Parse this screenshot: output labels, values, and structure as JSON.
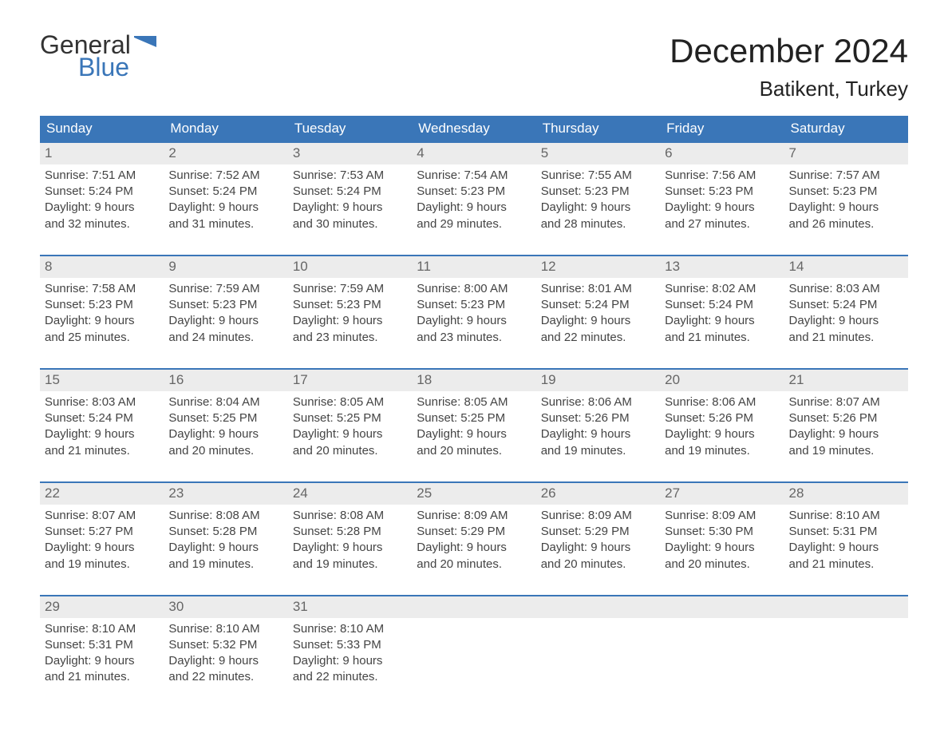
{
  "brand": {
    "word1": "General",
    "word2": "Blue",
    "accent_color": "#3a76b8"
  },
  "title": "December 2024",
  "location": "Batikent, Turkey",
  "calendar": {
    "type": "table",
    "columns": [
      "Sunday",
      "Monday",
      "Tuesday",
      "Wednesday",
      "Thursday",
      "Friday",
      "Saturday"
    ],
    "header_bg": "#3a76b8",
    "header_text_color": "#ffffff",
    "daynum_bg": "#ececec",
    "daynum_text_color": "#666666",
    "body_text_color": "#444444",
    "row_divider_color": "#3a76b8",
    "font_size_body": 15,
    "font_size_header": 17,
    "weeks": [
      [
        {
          "num": "1",
          "sunrise": "Sunrise: 7:51 AM",
          "sunset": "Sunset: 5:24 PM",
          "daylight1": "Daylight: 9 hours",
          "daylight2": "and 32 minutes."
        },
        {
          "num": "2",
          "sunrise": "Sunrise: 7:52 AM",
          "sunset": "Sunset: 5:24 PM",
          "daylight1": "Daylight: 9 hours",
          "daylight2": "and 31 minutes."
        },
        {
          "num": "3",
          "sunrise": "Sunrise: 7:53 AM",
          "sunset": "Sunset: 5:24 PM",
          "daylight1": "Daylight: 9 hours",
          "daylight2": "and 30 minutes."
        },
        {
          "num": "4",
          "sunrise": "Sunrise: 7:54 AM",
          "sunset": "Sunset: 5:23 PM",
          "daylight1": "Daylight: 9 hours",
          "daylight2": "and 29 minutes."
        },
        {
          "num": "5",
          "sunrise": "Sunrise: 7:55 AM",
          "sunset": "Sunset: 5:23 PM",
          "daylight1": "Daylight: 9 hours",
          "daylight2": "and 28 minutes."
        },
        {
          "num": "6",
          "sunrise": "Sunrise: 7:56 AM",
          "sunset": "Sunset: 5:23 PM",
          "daylight1": "Daylight: 9 hours",
          "daylight2": "and 27 minutes."
        },
        {
          "num": "7",
          "sunrise": "Sunrise: 7:57 AM",
          "sunset": "Sunset: 5:23 PM",
          "daylight1": "Daylight: 9 hours",
          "daylight2": "and 26 minutes."
        }
      ],
      [
        {
          "num": "8",
          "sunrise": "Sunrise: 7:58 AM",
          "sunset": "Sunset: 5:23 PM",
          "daylight1": "Daylight: 9 hours",
          "daylight2": "and 25 minutes."
        },
        {
          "num": "9",
          "sunrise": "Sunrise: 7:59 AM",
          "sunset": "Sunset: 5:23 PM",
          "daylight1": "Daylight: 9 hours",
          "daylight2": "and 24 minutes."
        },
        {
          "num": "10",
          "sunrise": "Sunrise: 7:59 AM",
          "sunset": "Sunset: 5:23 PM",
          "daylight1": "Daylight: 9 hours",
          "daylight2": "and 23 minutes."
        },
        {
          "num": "11",
          "sunrise": "Sunrise: 8:00 AM",
          "sunset": "Sunset: 5:23 PM",
          "daylight1": "Daylight: 9 hours",
          "daylight2": "and 23 minutes."
        },
        {
          "num": "12",
          "sunrise": "Sunrise: 8:01 AM",
          "sunset": "Sunset: 5:24 PM",
          "daylight1": "Daylight: 9 hours",
          "daylight2": "and 22 minutes."
        },
        {
          "num": "13",
          "sunrise": "Sunrise: 8:02 AM",
          "sunset": "Sunset: 5:24 PM",
          "daylight1": "Daylight: 9 hours",
          "daylight2": "and 21 minutes."
        },
        {
          "num": "14",
          "sunrise": "Sunrise: 8:03 AM",
          "sunset": "Sunset: 5:24 PM",
          "daylight1": "Daylight: 9 hours",
          "daylight2": "and 21 minutes."
        }
      ],
      [
        {
          "num": "15",
          "sunrise": "Sunrise: 8:03 AM",
          "sunset": "Sunset: 5:24 PM",
          "daylight1": "Daylight: 9 hours",
          "daylight2": "and 21 minutes."
        },
        {
          "num": "16",
          "sunrise": "Sunrise: 8:04 AM",
          "sunset": "Sunset: 5:25 PM",
          "daylight1": "Daylight: 9 hours",
          "daylight2": "and 20 minutes."
        },
        {
          "num": "17",
          "sunrise": "Sunrise: 8:05 AM",
          "sunset": "Sunset: 5:25 PM",
          "daylight1": "Daylight: 9 hours",
          "daylight2": "and 20 minutes."
        },
        {
          "num": "18",
          "sunrise": "Sunrise: 8:05 AM",
          "sunset": "Sunset: 5:25 PM",
          "daylight1": "Daylight: 9 hours",
          "daylight2": "and 20 minutes."
        },
        {
          "num": "19",
          "sunrise": "Sunrise: 8:06 AM",
          "sunset": "Sunset: 5:26 PM",
          "daylight1": "Daylight: 9 hours",
          "daylight2": "and 19 minutes."
        },
        {
          "num": "20",
          "sunrise": "Sunrise: 8:06 AM",
          "sunset": "Sunset: 5:26 PM",
          "daylight1": "Daylight: 9 hours",
          "daylight2": "and 19 minutes."
        },
        {
          "num": "21",
          "sunrise": "Sunrise: 8:07 AM",
          "sunset": "Sunset: 5:26 PM",
          "daylight1": "Daylight: 9 hours",
          "daylight2": "and 19 minutes."
        }
      ],
      [
        {
          "num": "22",
          "sunrise": "Sunrise: 8:07 AM",
          "sunset": "Sunset: 5:27 PM",
          "daylight1": "Daylight: 9 hours",
          "daylight2": "and 19 minutes."
        },
        {
          "num": "23",
          "sunrise": "Sunrise: 8:08 AM",
          "sunset": "Sunset: 5:28 PM",
          "daylight1": "Daylight: 9 hours",
          "daylight2": "and 19 minutes."
        },
        {
          "num": "24",
          "sunrise": "Sunrise: 8:08 AM",
          "sunset": "Sunset: 5:28 PM",
          "daylight1": "Daylight: 9 hours",
          "daylight2": "and 19 minutes."
        },
        {
          "num": "25",
          "sunrise": "Sunrise: 8:09 AM",
          "sunset": "Sunset: 5:29 PM",
          "daylight1": "Daylight: 9 hours",
          "daylight2": "and 20 minutes."
        },
        {
          "num": "26",
          "sunrise": "Sunrise: 8:09 AM",
          "sunset": "Sunset: 5:29 PM",
          "daylight1": "Daylight: 9 hours",
          "daylight2": "and 20 minutes."
        },
        {
          "num": "27",
          "sunrise": "Sunrise: 8:09 AM",
          "sunset": "Sunset: 5:30 PM",
          "daylight1": "Daylight: 9 hours",
          "daylight2": "and 20 minutes."
        },
        {
          "num": "28",
          "sunrise": "Sunrise: 8:10 AM",
          "sunset": "Sunset: 5:31 PM",
          "daylight1": "Daylight: 9 hours",
          "daylight2": "and 21 minutes."
        }
      ],
      [
        {
          "num": "29",
          "sunrise": "Sunrise: 8:10 AM",
          "sunset": "Sunset: 5:31 PM",
          "daylight1": "Daylight: 9 hours",
          "daylight2": "and 21 minutes."
        },
        {
          "num": "30",
          "sunrise": "Sunrise: 8:10 AM",
          "sunset": "Sunset: 5:32 PM",
          "daylight1": "Daylight: 9 hours",
          "daylight2": "and 22 minutes."
        },
        {
          "num": "31",
          "sunrise": "Sunrise: 8:10 AM",
          "sunset": "Sunset: 5:33 PM",
          "daylight1": "Daylight: 9 hours",
          "daylight2": "and 22 minutes."
        },
        null,
        null,
        null,
        null
      ]
    ]
  }
}
